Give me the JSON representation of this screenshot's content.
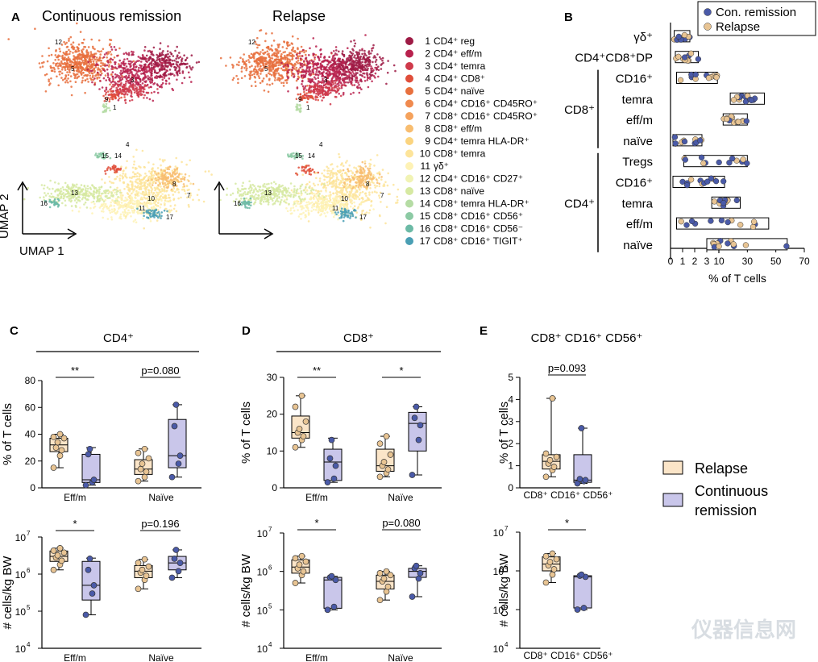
{
  "colors": {
    "relapse_fill": "#fbe5c8",
    "relapse_point": "#e8c493",
    "remission_fill": "#c9c6ea",
    "remission_point": "#4a5aa8",
    "axis": "#000000"
  },
  "panelA": {
    "letter": "A",
    "title_left": "Continuous remission",
    "title_right": "Relapse",
    "axis_x": "UMAP 1",
    "axis_y": "UMAP 2",
    "cluster_labels": [
      "12",
      "5",
      "3",
      "9",
      "1",
      "4",
      "15",
      "14",
      "13",
      "10",
      "8",
      "7",
      "16",
      "11",
      "17"
    ],
    "legend": [
      {
        "num": "1",
        "label": "CD4⁺ reg",
        "color": "#9e1b45"
      },
      {
        "num": "2",
        "label": "CD4⁺ eff/m",
        "color": "#b8214d"
      },
      {
        "num": "3",
        "label": "CD4⁺ temra",
        "color": "#cf3a4b"
      },
      {
        "num": "4",
        "label": "CD4⁺ CD8⁺",
        "color": "#e04e3a"
      },
      {
        "num": "5",
        "label": "CD4⁺ naïve",
        "color": "#e8703e"
      },
      {
        "num": "6",
        "label": "CD4⁺ CD16⁺ CD45RO⁺",
        "color": "#f08a4e"
      },
      {
        "num": "7",
        "label": "CD8⁺ CD16⁺ CD45RO⁺",
        "color": "#f5a25c"
      },
      {
        "num": "8",
        "label": "CD8⁺ eff/m",
        "color": "#f8bd70"
      },
      {
        "num": "9",
        "label": "CD4⁺ temra HLA-DR⁺",
        "color": "#fbd47f"
      },
      {
        "num": "10",
        "label": "CD8⁺ temra",
        "color": "#fde49a"
      },
      {
        "num": "11",
        "label": "γδ⁺",
        "color": "#fef2b5"
      },
      {
        "num": "12",
        "label": "CD4⁺ CD16⁺ CD27⁺",
        "color": "#f1f3b4"
      },
      {
        "num": "13",
        "label": "CD8⁺ naïve",
        "color": "#d6e9a2"
      },
      {
        "num": "14",
        "label": "CD8⁺ temra HLA-DR⁺",
        "color": "#b5dca4"
      },
      {
        "num": "15",
        "label": "CD8⁺ CD16⁺ CD56⁺",
        "color": "#8ccaa4"
      },
      {
        "num": "16",
        "label": "CD8⁺ CD16⁺ CD56⁻",
        "color": "#6cbaa6"
      },
      {
        "num": "17",
        "label": "CD8⁺ CD16⁺ TIGIT⁺",
        "color": "#4a9fb4"
      }
    ]
  },
  "chart_data": [
    {
      "id": "B",
      "type": "bar",
      "letter": "B",
      "orientation": "horizontal",
      "categories": [
        "γδ⁺",
        "CD4⁺CD8⁺DP",
        "CD16⁺",
        "temra",
        "eff/m",
        "naïve",
        "Tregs",
        "CD16⁺",
        "temra",
        "eff/m",
        "naïve"
      ],
      "groups": [
        {
          "name": "CD8⁺",
          "rows": [
            2,
            5
          ]
        },
        {
          "name": "CD4⁺",
          "rows": [
            6,
            10
          ]
        }
      ],
      "bar_ranges": [
        [
          0.3,
          1.6
        ],
        [
          0.4,
          2.3
        ],
        [
          0.5,
          9
        ],
        [
          18,
          42
        ],
        [
          13,
          30
        ],
        [
          0.2,
          2.6
        ],
        [
          1.1,
          30
        ],
        [
          0.2,
          14
        ],
        [
          5,
          25
        ],
        [
          0.5,
          45
        ],
        [
          3,
          58
        ]
      ],
      "xlabel": "% of T cells",
      "xticks": [
        0,
        1,
        2,
        3,
        10,
        30,
        50,
        70
      ],
      "xticklabels": [
        "0",
        "1",
        "2",
        "3",
        "10",
        "30",
        "50",
        "70"
      ],
      "axis_break": true,
      "legend": [
        "Con. remission",
        "Relapse"
      ],
      "legend_position": "top-right"
    },
    {
      "id": "C",
      "type": "box",
      "letter": "C",
      "group_title": "CD4⁺",
      "subplots": [
        {
          "ylabel": "% of T cells",
          "scale": "linear",
          "ylim": [
            0,
            80
          ],
          "yticks": [
            "0",
            "20",
            "40",
            "60",
            "80"
          ],
          "categories": [
            "Eff/m",
            "Naïve"
          ],
          "boxes": [
            {
              "group": "Relapse",
              "category": "Eff/m",
              "min": 15,
              "q1": 27,
              "median": 32,
              "q3": 37,
              "max": 40,
              "points": [
                15,
                24,
                28,
                30,
                34,
                37,
                38,
                40
              ]
            },
            {
              "group": "Continuous remission",
              "category": "Eff/m",
              "min": 2,
              "q1": 4,
              "median": 6,
              "q3": 25,
              "max": 30,
              "points": [
                2,
                4,
                6,
                25,
                29
              ]
            },
            {
              "group": "Relapse",
              "category": "Naïve",
              "min": 5,
              "q1": 10,
              "median": 14,
              "q3": 21,
              "max": 29,
              "points": [
                5,
                8,
                12,
                14,
                18,
                22,
                26,
                29
              ]
            },
            {
              "group": "Continuous remission",
              "category": "Naïve",
              "min": 8,
              "q1": 15,
              "median": 24,
              "q3": 51,
              "max": 62,
              "points": [
                8,
                18,
                24,
                46,
                62
              ]
            }
          ],
          "annotations": [
            {
              "text": "**",
              "category": "Eff/m"
            },
            {
              "text": "p=0.080",
              "category": "Naïve"
            }
          ]
        },
        {
          "ylabel": "# cells/kg BW",
          "scale": "log",
          "ylim": [
            10000,
            10000000
          ],
          "ytick_bases": [
            "10",
            "10",
            "10",
            "10"
          ],
          "ytick_exps": [
            "4",
            "5",
            "6",
            "7"
          ],
          "categories": [
            "Eff/m",
            "Naïve"
          ],
          "boxes": [
            {
              "group": "Relapse",
              "category": "Eff/m",
              "min": 1300000,
              "q1": 2200000,
              "median": 3000000,
              "q3": 4200000,
              "max": 5000000,
              "points": [
                1300000,
                1800000,
                2300000,
                2800000,
                3200000,
                3800000,
                4300000,
                5000000
              ]
            },
            {
              "group": "Continuous remission",
              "category": "Eff/m",
              "min": 80000,
              "q1": 200000,
              "median": 500000,
              "q3": 2200000,
              "max": 2700000,
              "points": [
                80000,
                300000,
                500000,
                1300000,
                2600000
              ]
            },
            {
              "group": "Relapse",
              "category": "Naïve",
              "min": 400000,
              "q1": 800000,
              "median": 1200000,
              "q3": 1700000,
              "max": 2500000,
              "points": [
                400000,
                700000,
                900000,
                1100000,
                1300000,
                1600000,
                2000000,
                2500000
              ]
            },
            {
              "group": "Continuous remission",
              "category": "Naïve",
              "min": 800000,
              "q1": 1300000,
              "median": 2000000,
              "q3": 3000000,
              "max": 4500000,
              "points": [
                800000,
                1200000,
                2000000,
                2600000,
                4500000
              ]
            }
          ],
          "annotations": [
            {
              "text": "*",
              "category": "Eff/m"
            },
            {
              "text": "p=0.196",
              "category": "Naïve"
            }
          ]
        }
      ]
    },
    {
      "id": "D",
      "type": "box",
      "letter": "D",
      "group_title": "CD8⁺",
      "subplots": [
        {
          "ylabel": "% of T cells",
          "scale": "linear",
          "ylim": [
            0,
            30
          ],
          "yticks": [
            "0",
            "10",
            "20",
            "30"
          ],
          "categories": [
            "Eff/m",
            "Naïve"
          ],
          "boxes": [
            {
              "group": "Relapse",
              "category": "Eff/m",
              "min": 11,
              "q1": 13.5,
              "median": 15,
              "q3": 19.5,
              "max": 25,
              "points": [
                11,
                13,
                14,
                15,
                16,
                18,
                22,
                25
              ]
            },
            {
              "group": "Continuous remission",
              "category": "Eff/m",
              "min": 1.5,
              "q1": 2,
              "median": 7,
              "q3": 10.5,
              "max": 13.5,
              "points": [
                1.5,
                2.5,
                6,
                8,
                13
              ]
            },
            {
              "group": "Relapse",
              "category": "Naïve",
              "min": 3,
              "q1": 4.5,
              "median": 6,
              "q3": 10.5,
              "max": 14,
              "points": [
                3,
                4,
                5,
                6,
                7,
                9,
                12,
                14
              ]
            },
            {
              "group": "Continuous remission",
              "category": "Naïve",
              "min": 3.5,
              "q1": 10,
              "median": 17.5,
              "q3": 20.5,
              "max": 22,
              "points": [
                3.5,
                13,
                17,
                19,
                22
              ]
            }
          ],
          "annotations": [
            {
              "text": "**",
              "category": "Eff/m"
            },
            {
              "text": "*",
              "category": "Naïve"
            }
          ]
        },
        {
          "ylabel": "# cells/kg BW",
          "scale": "log",
          "ylim": [
            10000,
            10000000
          ],
          "ytick_bases": [
            "10",
            "10",
            "10",
            "10"
          ],
          "ytick_exps": [
            "4",
            "5",
            "6",
            "7"
          ],
          "categories": [
            "Eff/m",
            "Naïve"
          ],
          "boxes": [
            {
              "group": "Relapse",
              "category": "Eff/m",
              "min": 500000,
              "q1": 900000,
              "median": 1300000,
              "q3": 2000000,
              "max": 2500000,
              "points": [
                500000,
                800000,
                1000000,
                1200000,
                1500000,
                1800000,
                2200000,
                2500000
              ]
            },
            {
              "group": "Continuous remission",
              "category": "Eff/m",
              "min": 100000,
              "q1": 110000,
              "median": 600000,
              "q3": 700000,
              "max": 750000,
              "points": [
                100000,
                120000,
                600000,
                700000,
                750000
              ]
            },
            {
              "group": "Relapse",
              "category": "Naïve",
              "min": 180000,
              "q1": 350000,
              "median": 550000,
              "q3": 800000,
              "max": 1000000,
              "points": [
                180000,
                300000,
                400000,
                550000,
                650000,
                800000,
                900000,
                1000000
              ]
            },
            {
              "group": "Continuous remission",
              "category": "Naïve",
              "min": 220000,
              "q1": 700000,
              "median": 1000000,
              "q3": 1200000,
              "max": 1400000,
              "points": [
                220000,
                650000,
                900000,
                1200000,
                1400000
              ]
            }
          ],
          "annotations": [
            {
              "text": "*",
              "category": "Eff/m"
            },
            {
              "text": "p=0.080",
              "category": "Naïve"
            }
          ]
        }
      ]
    },
    {
      "id": "E",
      "type": "box",
      "letter": "E",
      "group_title": "CD8⁺ CD16⁺ CD56⁺",
      "subplots": [
        {
          "ylabel": "% of T cells",
          "scale": "linear",
          "ylim": [
            0,
            5
          ],
          "yticks": [
            "0",
            "1",
            "2",
            "3",
            "4",
            "5"
          ],
          "categories": [
            "CD8⁺ CD16⁺ CD56⁺"
          ],
          "boxes": [
            {
              "group": "Relapse",
              "category": "CD8⁺ CD16⁺ CD56⁺",
              "min": 0.5,
              "q1": 0.85,
              "median": 1.2,
              "q3": 1.5,
              "max": 4.05,
              "points": [
                0.5,
                0.8,
                0.95,
                1.1,
                1.25,
                1.4,
                1.55,
                4.05
              ]
            },
            {
              "group": "Continuous remission",
              "category": "CD8⁺ CD16⁺ CD56⁺",
              "min": 0.2,
              "q1": 0.25,
              "median": 0.35,
              "q3": 1.5,
              "max": 2.7,
              "points": [
                0.2,
                0.3,
                0.35,
                0.4,
                2.7
              ]
            }
          ],
          "annotations": [
            {
              "text": "p=0.093",
              "category": "CD8⁺ CD16⁺ CD56⁺"
            }
          ]
        },
        {
          "ylabel": "# cells/kg BW",
          "scale": "log",
          "ylim": [
            10000,
            10000000
          ],
          "ytick_bases": [
            "10",
            "10",
            "10",
            "10"
          ],
          "ytick_exps": [
            "4",
            "5",
            "6",
            "7"
          ],
          "categories": [
            "CD8⁺ CD16⁺ CD56⁺"
          ],
          "boxes": [
            {
              "group": "Relapse",
              "category": "CD8⁺ CD16⁺ CD56⁺",
              "min": 500000,
              "q1": 1000000,
              "median": 1500000,
              "q3": 2300000,
              "max": 2800000,
              "points": [
                500000,
                800000,
                1100000,
                1400000,
                1700000,
                2000000,
                2400000,
                2800000
              ]
            },
            {
              "group": "Continuous remission",
              "category": "CD8⁺ CD16⁺ CD56⁺",
              "min": 100000,
              "q1": 110000,
              "median": 700000,
              "q3": 750000,
              "max": 800000,
              "points": [
                100000,
                110000,
                700000,
                750000,
                800000
              ]
            }
          ],
          "annotations": [
            {
              "text": "*",
              "category": "CD8⁺ CD16⁺ CD56⁺"
            }
          ]
        }
      ]
    }
  ],
  "main_legend": {
    "relapse": "Relapse",
    "remission_line1": "Continuous",
    "remission_line2": "remission"
  },
  "watermark": "仪器信息网"
}
